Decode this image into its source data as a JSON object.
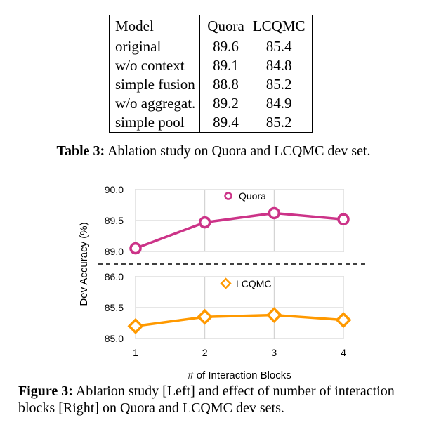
{
  "table": {
    "headers": [
      "Model",
      "Quora",
      "LCQMC"
    ],
    "rows": [
      [
        "original",
        "89.6",
        "85.4"
      ],
      [
        "w/o context",
        "89.1",
        "84.8"
      ],
      [
        "simple fusion",
        "88.8",
        "85.2"
      ],
      [
        "w/o aggregat.",
        "89.2",
        "84.9"
      ],
      [
        "simple pool",
        "89.4",
        "85.2"
      ]
    ],
    "caption_label": "Table 3:",
    "caption_text": "Ablation study on Quora and LCQMC dev set."
  },
  "chart_data": {
    "type": "line",
    "xlabel": "# of Interaction Blocks",
    "ylabel": "Dev Accuracy (%)",
    "x": [
      1,
      2,
      3,
      4
    ],
    "x_tick_labels": [
      "1",
      "2",
      "3",
      "4"
    ],
    "broken_axis": true,
    "grid": true,
    "panels": [
      {
        "series": [
          {
            "name": "Quora",
            "values": [
              89.05,
              89.47,
              89.62,
              89.52
            ],
            "color": "#cc3388",
            "marker": "circle"
          }
        ],
        "ylim": [
          89.0,
          90.0
        ],
        "y_ticks": [
          "89.0",
          "89.5",
          "90.0"
        ],
        "legend_position": "top-center"
      },
      {
        "series": [
          {
            "name": "LCQMC",
            "values": [
              85.2,
              85.35,
              85.38,
              85.3
            ],
            "color": "#ff9900",
            "marker": "diamond"
          }
        ],
        "ylim": [
          85.0,
          86.0
        ],
        "y_ticks": [
          "85.0",
          "85.5",
          "86.0"
        ],
        "legend_position": "top-center"
      }
    ]
  },
  "figure": {
    "caption_label": "Figure 3:",
    "caption_text": " Ablation study [Left] and effect of number of interaction blocks [Right] on Quora and LCQMC dev sets."
  }
}
